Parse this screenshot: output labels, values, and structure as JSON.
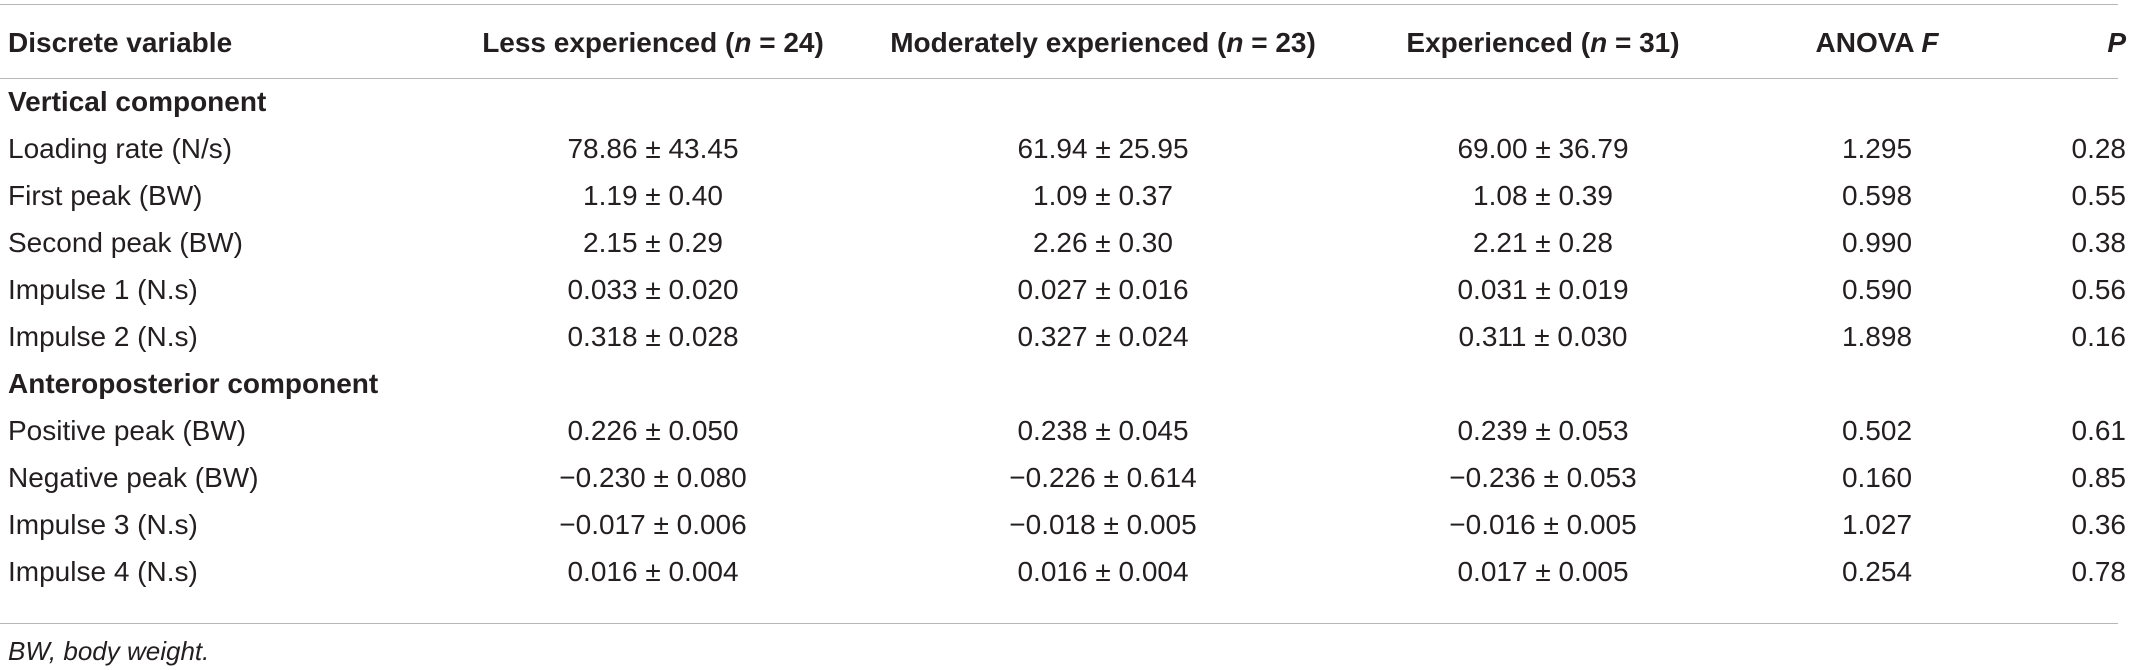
{
  "table": {
    "headers": {
      "variable": "Discrete variable",
      "less_prefix": "Less experienced (",
      "moderate_prefix": "Moderately experienced (",
      "experienced_prefix": "Experienced (",
      "n_symbol": "n",
      "less_n": " = 24)",
      "moderate_n": " = 23)",
      "experienced_n": " = 31)",
      "anova_prefix": "ANOVA ",
      "anova_f": "F",
      "p": "P"
    },
    "sections": [
      {
        "title": "Vertical component",
        "rows": [
          {
            "variable": "Loading rate (N/s)",
            "less": "78.86 ± 43.45",
            "moderate": "61.94 ± 25.95",
            "experienced": "69.00 ± 36.79",
            "anova_f": "1.295",
            "p": "0.28"
          },
          {
            "variable": "First peak (BW)",
            "less": "1.19 ± 0.40",
            "moderate": "1.09 ± 0.37",
            "experienced": "1.08 ± 0.39",
            "anova_f": "0.598",
            "p": "0.55"
          },
          {
            "variable": "Second peak (BW)",
            "less": "2.15 ± 0.29",
            "moderate": "2.26 ± 0.30",
            "experienced": "2.21 ± 0.28",
            "anova_f": "0.990",
            "p": "0.38"
          },
          {
            "variable": "Impulse 1 (N.s)",
            "less": "0.033 ± 0.020",
            "moderate": "0.027 ± 0.016",
            "experienced": "0.031 ± 0.019",
            "anova_f": "0.590",
            "p": "0.56"
          },
          {
            "variable": "Impulse 2 (N.s)",
            "less": "0.318 ± 0.028",
            "moderate": "0.327 ± 0.024",
            "experienced": "0.311 ± 0.030",
            "anova_f": "1.898",
            "p": "0.16"
          }
        ]
      },
      {
        "title": "Anteroposterior component",
        "rows": [
          {
            "variable": "Positive peak (BW)",
            "less": "0.226 ± 0.050",
            "moderate": "0.238 ± 0.045",
            "experienced": "0.239 ± 0.053",
            "anova_f": "0.502",
            "p": "0.61"
          },
          {
            "variable": "Negative peak (BW)",
            "less": "−0.230 ± 0.080",
            "moderate": "−0.226 ± 0.614",
            "experienced": "−0.236 ± 0.053",
            "anova_f": "0.160",
            "p": "0.85"
          },
          {
            "variable": "Impulse 3 (N.s)",
            "less": "−0.017 ± 0.006",
            "moderate": "−0.018 ± 0.005",
            "experienced": "−0.016 ± 0.005",
            "anova_f": "1.027",
            "p": "0.36"
          },
          {
            "variable": "Impulse 4 (N.s)",
            "less": "0.016 ± 0.004",
            "moderate": "0.016 ± 0.004",
            "experienced": "0.017 ± 0.005",
            "anova_f": "0.254",
            "p": "0.78"
          }
        ]
      }
    ],
    "footnote": "BW, body weight."
  }
}
